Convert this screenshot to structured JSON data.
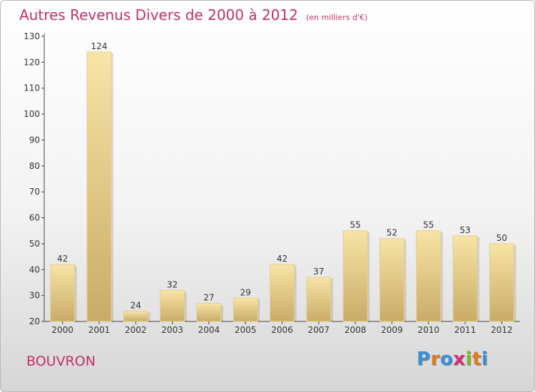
{
  "chart_data": {
    "type": "bar",
    "title": "Autres Revenus Divers de 2000 à 2012",
    "subtitle": "(en milliers d'€)",
    "categories": [
      "2000",
      "2001",
      "2002",
      "2003",
      "2004",
      "2005",
      "2006",
      "2007",
      "2008",
      "2009",
      "2010",
      "2011",
      "2012"
    ],
    "values": [
      42,
      124,
      24,
      32,
      27,
      29,
      42,
      37,
      55,
      52,
      55,
      53,
      50
    ],
    "ylim": [
      20,
      130
    ],
    "yticks": [
      20,
      30,
      40,
      50,
      60,
      70,
      80,
      90,
      100,
      110,
      120,
      130
    ],
    "xlabel": "",
    "ylabel": "",
    "grid": false,
    "bar_color": "#e9cc85",
    "title_color": "#c0306a"
  },
  "footer": {
    "commune": "BOUVRON",
    "logo_text": "Proxiti"
  }
}
